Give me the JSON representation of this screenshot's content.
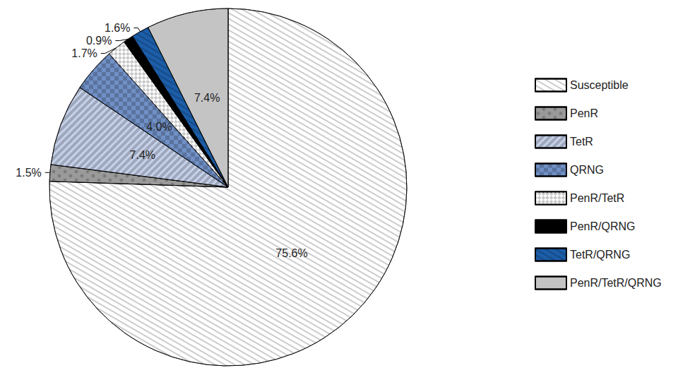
{
  "chart_data": {
    "type": "pie",
    "categories": [
      "Susceptible",
      "PenR",
      "TetR",
      "QRNG",
      "PenR/TetR",
      "PenR/QRNG",
      "TetR/QRNG",
      "PenR/TetR/QRNG"
    ],
    "values": [
      75.6,
      1.5,
      7.4,
      4.0,
      1.7,
      0.9,
      1.6,
      7.4
    ],
    "value_labels": [
      "75.6%",
      "1.5%",
      "7.4%",
      "4.0%",
      "1.7%",
      "0.9%",
      "1.6%",
      "7.4%"
    ],
    "colors": [
      "#ffffff",
      "#9a9a9a",
      "#c6d1ea",
      "#7090c6",
      "#c8c8c8",
      "#000000",
      "#1c5da8",
      "#c4c4c4"
    ],
    "data_labels": true,
    "legend": "right"
  }
}
